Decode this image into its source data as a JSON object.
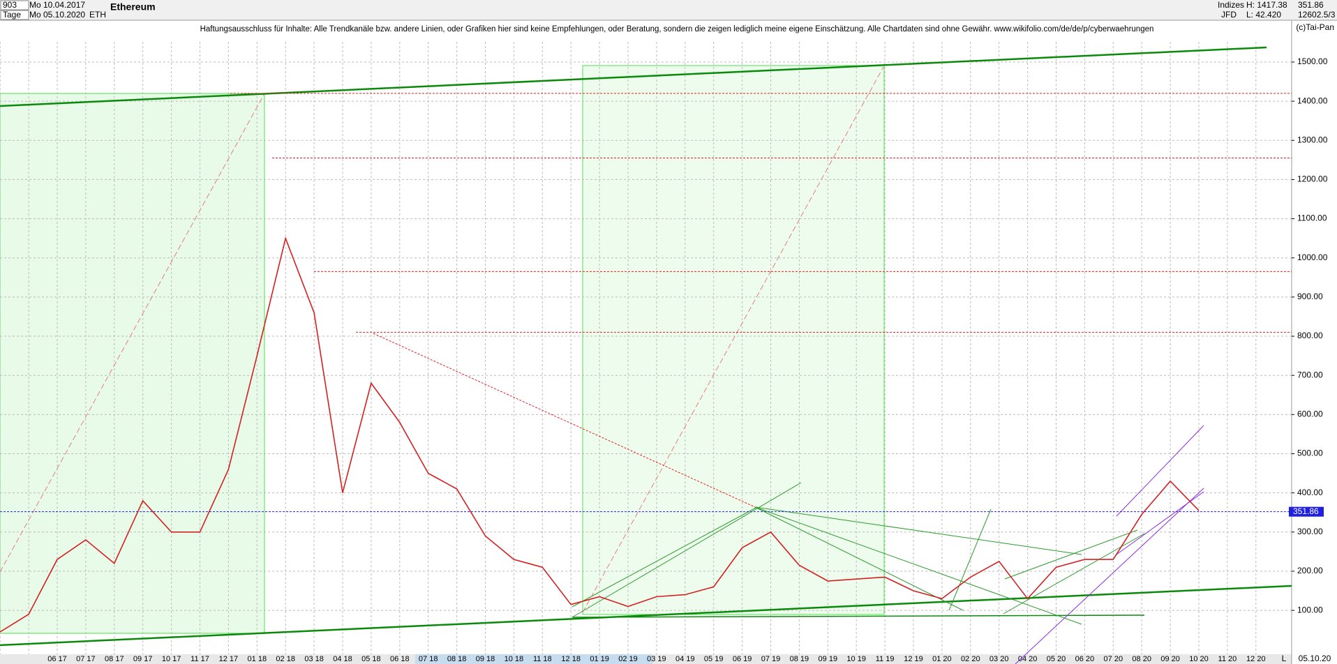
{
  "header": {
    "count": "903",
    "start_date": "Mo 10.04.2017",
    "period": "Tage",
    "end_date": "Mo 05.10.2020",
    "symbol": "ETH",
    "name": "Ethereum",
    "group": "Indizes",
    "broker": "JFD",
    "high": "H: 1417.38",
    "low": "L: 42.420",
    "last": "351.86",
    "extra": "12602.5/3",
    "copyright": "(c)Tai-Pan",
    "disclaimer": "Haftungsausschluss für Inhalte: Alle Trendkanäle bzw. andere Linien, oder Grafiken hier sind keine Empfehlungen, oder Beratung, sondern die zeigen lediglich meine eigene Einschätzung. Alle Chartdaten sind ohne Gewähr.  www.wikifolio.com/de/de/p/cyberwaehrungen",
    "footer_date": "05.10.20",
    "footer_mode": "L"
  },
  "chart_data": {
    "type": "line",
    "title": "Ethereum",
    "color": "#d42020",
    "categories": [
      null,
      null,
      "06 17",
      "07 17",
      "08 17",
      "09 17",
      "10 17",
      "11 17",
      "12 17",
      "01 18",
      "02 18",
      "03 18",
      "04 18",
      "05 18",
      "06 18",
      "07 18",
      "08 18",
      "09 18",
      "10 18",
      "11 18",
      "12 18",
      "01 19",
      "02 19",
      "03 19",
      "04 19",
      "05 19",
      "06 19",
      "07 19",
      "08 19",
      "09 19",
      "10 19",
      "11 19",
      "12 19",
      "01 20",
      "02 20",
      "03 20",
      "04 20",
      "05 20",
      "06 20",
      "07 20",
      "08 20",
      "09 20",
      "10 20",
      "11 20",
      "12 20"
    ],
    "values": [
      45,
      90,
      230,
      280,
      220,
      380,
      300,
      300,
      460,
      750,
      1050,
      860,
      400,
      680,
      580,
      450,
      410,
      290,
      230,
      210,
      115,
      135,
      110,
      135,
      140,
      160,
      260,
      300,
      215,
      175,
      180,
      185,
      150,
      130,
      185,
      225,
      130,
      210,
      230,
      230,
      345,
      430,
      355,
      null,
      null
    ],
    "ylim": [
      -12,
      1605
    ],
    "yticks": [
      {
        "value": 100,
        "label": "100.00"
      },
      {
        "value": 200,
        "label": "200.00"
      },
      {
        "value": 300,
        "label": "300.00"
      },
      {
        "value": 400,
        "label": "400.00"
      },
      {
        "value": 500,
        "label": "500.00"
      },
      {
        "value": 600,
        "label": "600.00"
      },
      {
        "value": 700,
        "label": "700.00"
      },
      {
        "value": 800,
        "label": "800.00"
      },
      {
        "value": 900,
        "label": "900.00"
      },
      {
        "value": 1000,
        "label": "1000.00"
      },
      {
        "value": 1100,
        "label": "1100.00"
      },
      {
        "value": 1200,
        "label": "1200.00"
      },
      {
        "value": 1300,
        "label": "1300.00"
      },
      {
        "value": 1400,
        "label": "1400.00"
      },
      {
        "value": 1500,
        "label": "1500.00"
      }
    ],
    "current": {
      "value": 351.86,
      "label": "351.86",
      "color": "#2020e0"
    },
    "reference_lines": [
      1420,
      1255,
      965,
      810
    ],
    "grid": true
  }
}
